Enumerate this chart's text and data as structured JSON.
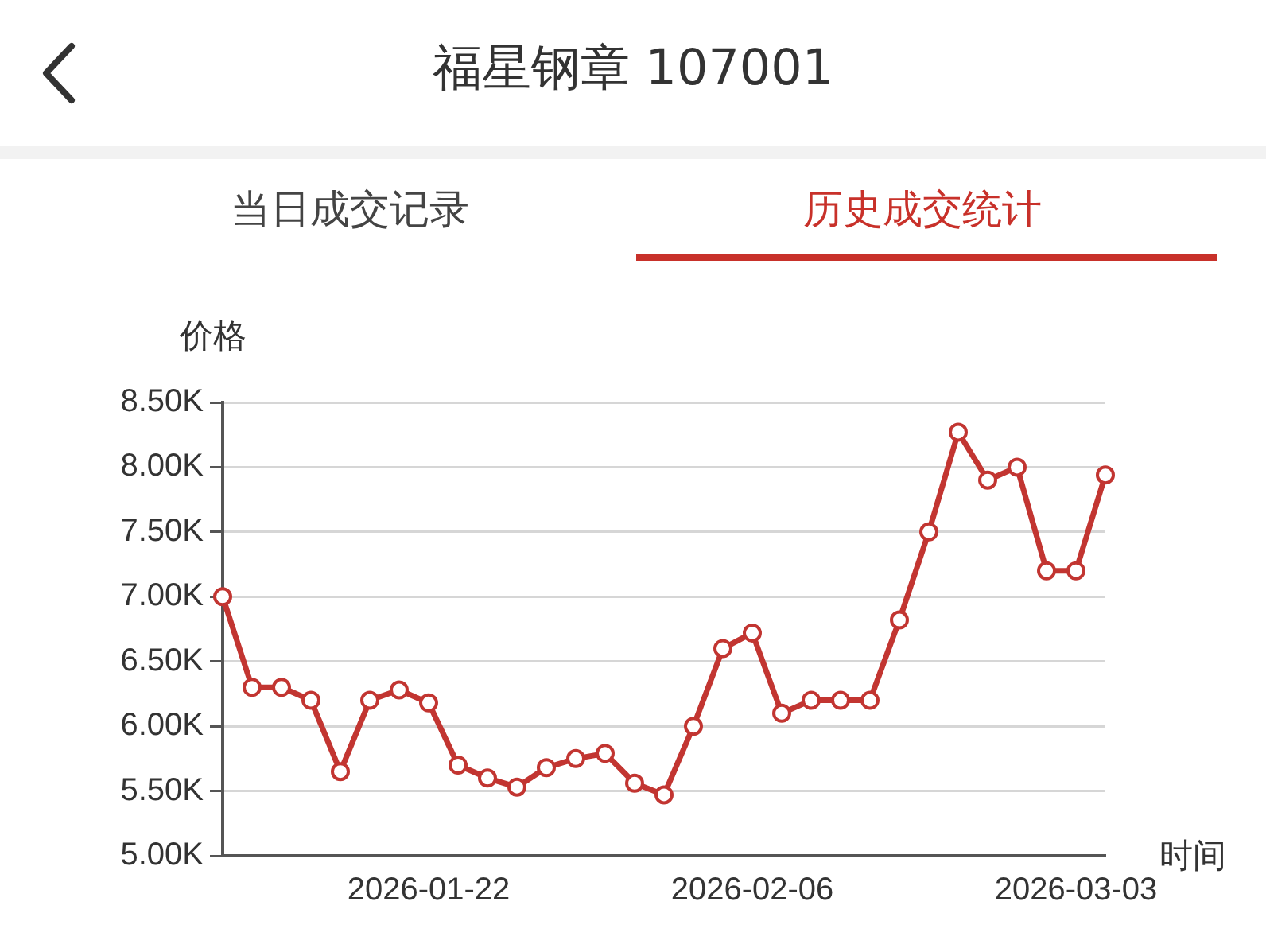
{
  "chart_data": {
    "type": "line",
    "title": "福星钢章 107001",
    "annotations": [
      "当日成交记录",
      "历史成交统计"
    ],
    "ylabel": "价格",
    "xlabel": "时间",
    "categories": [
      null,
      null,
      null,
      null,
      null,
      null,
      null,
      "2026-01-22",
      null,
      null,
      null,
      null,
      null,
      null,
      null,
      null,
      null,
      null,
      "2026-02-06",
      null,
      null,
      null,
      null,
      null,
      null,
      null,
      null,
      null,
      null,
      "2026-03-03",
      null
    ],
    "series": [
      {
        "color": "#c23531",
        "values": [
          7000,
          6300,
          6300,
          6200,
          5650,
          6200,
          6280,
          6180,
          5700,
          5600,
          5530,
          5680,
          5750,
          5790,
          5560,
          5470,
          6000,
          6600,
          6720,
          6100,
          6200,
          6200,
          6200,
          6820,
          7500,
          8270,
          7900,
          8000,
          7200,
          7200,
          7940
        ]
      }
    ],
    "ylim": [
      5000,
      8500
    ],
    "yticks": [
      {
        "value": 5000,
        "label": "5.00K"
      },
      {
        "value": 5500,
        "label": "5.50K"
      },
      {
        "value": 6000,
        "label": "6.00K"
      },
      {
        "value": 6500,
        "label": "6.50K"
      },
      {
        "value": 7000,
        "label": "7.00K"
      },
      {
        "value": 7500,
        "label": "7.50K"
      },
      {
        "value": 8000,
        "label": "8.00K"
      },
      {
        "value": 8500,
        "label": "8.50K"
      }
    ],
    "grid": "y",
    "legend": false,
    "marker": "circle",
    "line_style": "solid"
  }
}
